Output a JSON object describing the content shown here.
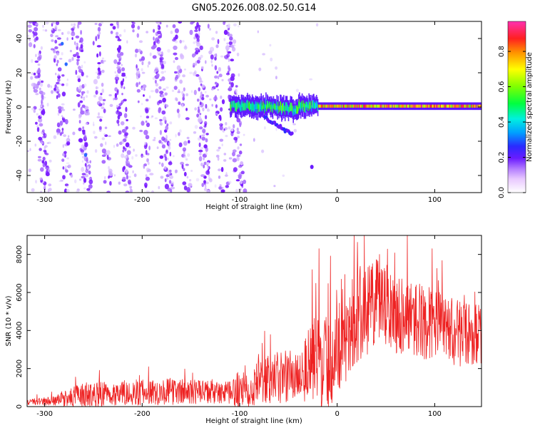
{
  "title": "GN05.2026.008.02.50.G14",
  "chart_data": [
    {
      "type": "heatmap",
      "xlabel": "Height of straight line (km)",
      "ylabel": "Frequency (Hz)",
      "xlim": [
        -318,
        148
      ],
      "ylim": [
        -50,
        50
      ],
      "xticks": [
        -300,
        -200,
        -100,
        0,
        100
      ],
      "yticks": [
        -40,
        -20,
        0,
        20,
        40
      ],
      "xtick_labels": [
        "-300",
        "-200",
        "-100",
        "0",
        "100"
      ],
      "ytick_labels": [
        "-40",
        "-20",
        "0",
        "20",
        "40"
      ],
      "colorbar": {
        "label": "Normalized spectral amplitude",
        "range": [
          0,
          0.97
        ],
        "ticks": [
          0,
          0.2,
          0.4,
          0.6,
          0.8
        ],
        "tick_labels": [
          "0.0",
          "0.2",
          "0.4",
          "0.6",
          "0.8"
        ]
      },
      "features": {
        "scintillation_streaks": {
          "x_range": [
            -318,
            -100
          ],
          "slope_hz_per_km": -1.1,
          "amplitude": 0.12
        },
        "carrier_line": {
          "x_range": [
            -110,
            148
          ],
          "freq_hz": 0.5,
          "peak_amplitude": 0.95
        }
      }
    },
    {
      "type": "line",
      "xlabel": "Height of straight line (km)",
      "ylabel": "SNR (10 * v/v)",
      "xlim": [
        -318,
        148
      ],
      "ylim": [
        0,
        9000
      ],
      "xticks": [
        -300,
        -200,
        -100,
        0,
        100
      ],
      "yticks": [
        0,
        2000,
        4000,
        6000,
        8000
      ],
      "xtick_labels": [
        "-300",
        "-200",
        "-100",
        "0",
        "100"
      ],
      "ytick_labels": [
        "0",
        "2000",
        "4000",
        "6000",
        "8000"
      ],
      "color": "#ee2222",
      "envelope": {
        "x": [
          -318,
          -290,
          -260,
          -230,
          -200,
          -170,
          -140,
          -110,
          -100,
          -80,
          -60,
          -40,
          -30,
          -20,
          -10,
          0,
          10,
          20,
          30,
          40,
          60,
          80,
          100,
          120,
          148
        ],
        "mean": [
          250,
          300,
          600,
          700,
          750,
          800,
          750,
          700,
          900,
          1300,
          1500,
          1700,
          2100,
          2500,
          2300,
          3000,
          3800,
          4600,
          5200,
          5400,
          5000,
          4600,
          4300,
          3900,
          3800
        ],
        "spread": [
          150,
          250,
          700,
          650,
          700,
          700,
          650,
          600,
          1200,
          1200,
          1400,
          1500,
          2000,
          2600,
          2500,
          2400,
          2400,
          2600,
          2600,
          2400,
          2200,
          2000,
          1900,
          1800,
          1600
        ]
      },
      "spikes": [
        {
          "x": -26,
          "value": 7200
        },
        {
          "x": -19,
          "value": 8300
        },
        {
          "x": 17,
          "value": 9000
        },
        {
          "x": 43,
          "value": 8000
        },
        {
          "x": 97,
          "value": 8300
        }
      ]
    }
  ],
  "colors": {
    "scintillation": "#7a1cff",
    "line_series": "#ee2222",
    "background": "#ffffff"
  }
}
